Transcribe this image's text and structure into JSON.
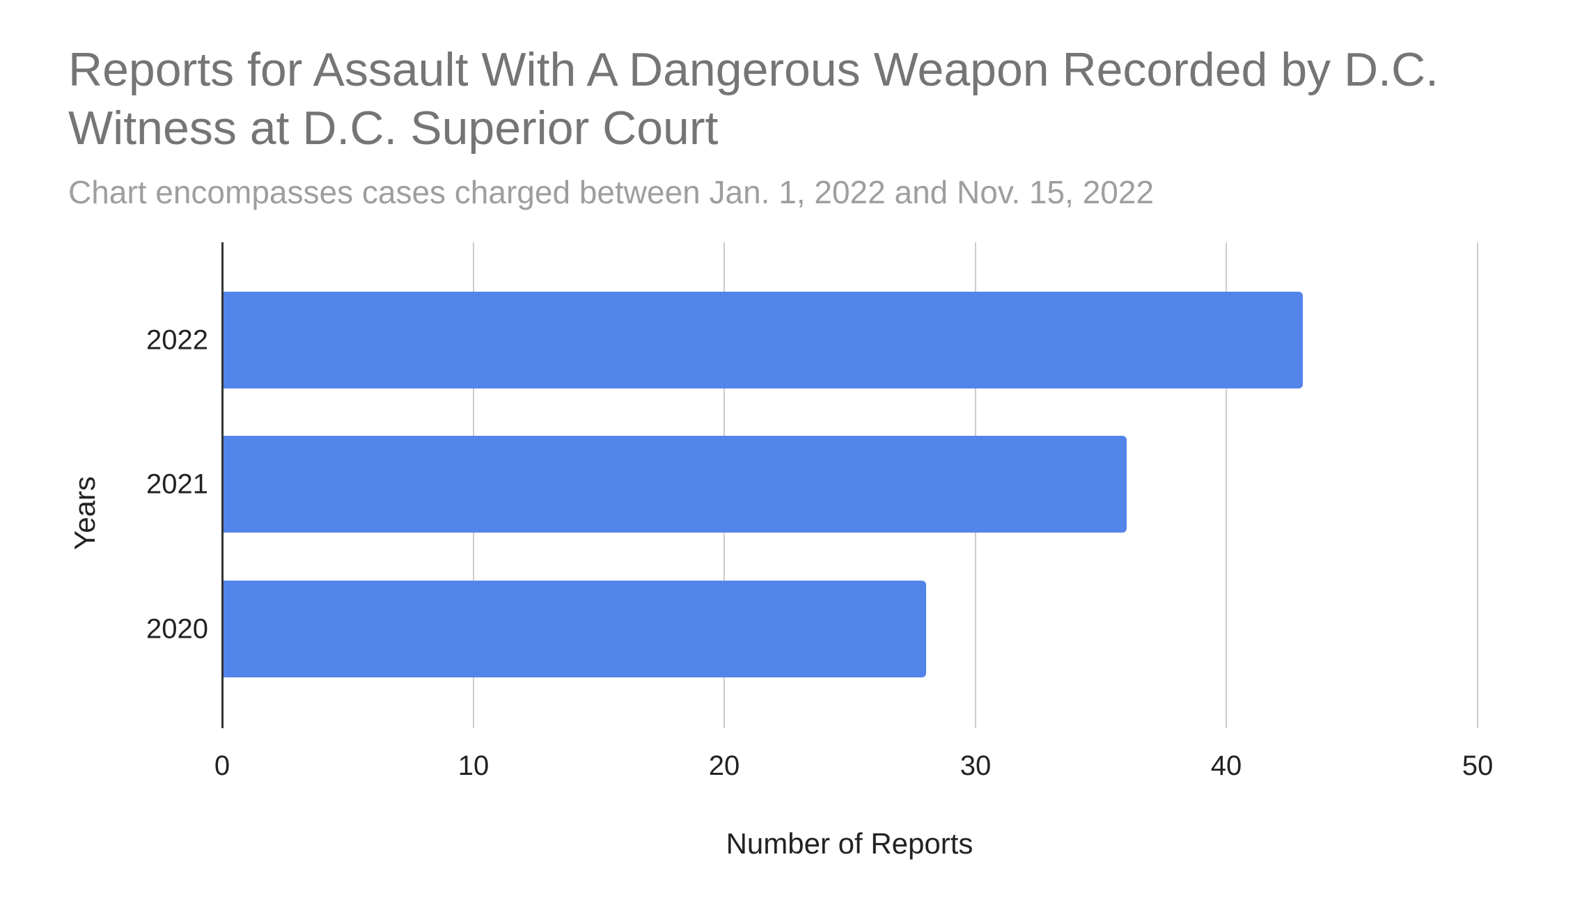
{
  "chart_data": {
    "type": "bar",
    "orientation": "horizontal",
    "title": "Reports for Assault With A Dangerous Weapon Recorded by D.C. Witness at D.C. Superior Court",
    "subtitle": "Chart encompasses cases charged between Jan. 1, 2022 and Nov. 15, 2022",
    "categories": [
      "2022",
      "2021",
      "2020"
    ],
    "values": [
      43,
      36,
      28
    ],
    "xlabel": "Number of Reports",
    "ylabel": "Years",
    "xlim": [
      0,
      50
    ],
    "xticks": [
      "0",
      "10",
      "20",
      "30",
      "40",
      "50"
    ],
    "grid": true,
    "legend": "none",
    "bar_color": "#5384ea"
  }
}
